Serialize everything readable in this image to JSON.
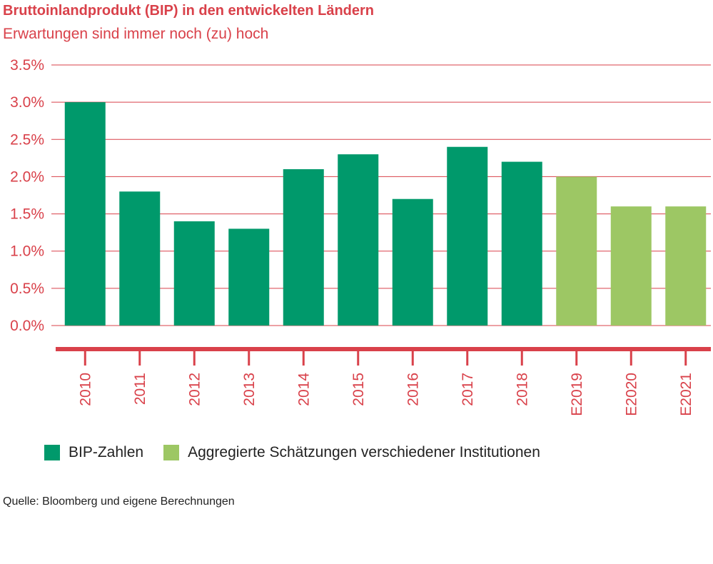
{
  "header": {
    "title": "Bruttoinlandprodukt (BIP) in den entwickelten Ländern",
    "subtitle": "Erwartungen sind immer noch (zu) hoch"
  },
  "legend": [
    {
      "label": "BIP-Zahlen",
      "color": "#00996b"
    },
    {
      "label": "Aggregierte Schätzungen verschiedener Institutionen",
      "color": "#9dc764"
    }
  ],
  "source": "Quelle: Bloomberg und eigene Berechnungen",
  "colors": {
    "accent": "#d9414a",
    "actual": "#00996b",
    "estimate": "#9dc764"
  },
  "chart_data": {
    "type": "bar",
    "categories": [
      "2010",
      "2011",
      "2012",
      "2013",
      "2014",
      "2015",
      "2016",
      "2017",
      "2018",
      "E2019",
      "E2020",
      "E2021"
    ],
    "values": [
      3.0,
      1.8,
      1.4,
      1.3,
      2.1,
      2.3,
      1.7,
      2.4,
      2.2,
      2.0,
      1.6,
      1.6
    ],
    "estimate": [
      false,
      false,
      false,
      false,
      false,
      false,
      false,
      false,
      false,
      true,
      true,
      true
    ],
    "yticks": [
      "0.0%",
      "0.5%",
      "1.0%",
      "1.5%",
      "2.0%",
      "2.5%",
      "3.0%",
      "3.5%"
    ],
    "ylim": [
      0,
      3.5
    ],
    "grid": true
  }
}
